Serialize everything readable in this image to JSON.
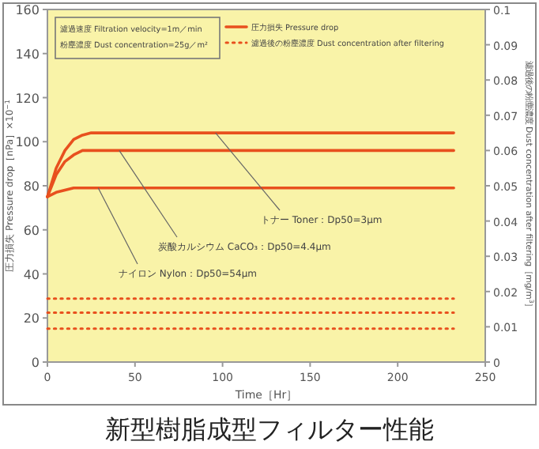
{
  "chart_data": {
    "type": "line",
    "title": "新型樹脂成型フィルター性能",
    "xlabel": "Time［Hr］",
    "ylabel": "圧力損失 Pressure drop［nPa］×10$^{−1}$",
    "y2label": "濾過後の粉塵濃度 Dust concentration after filtering［mg/m$^{3}$］",
    "xlim": [
      0,
      250
    ],
    "xticks": [
      0,
      50,
      100,
      150,
      200,
      250
    ],
    "ylim": [
      0,
      160
    ],
    "yticks": [
      0,
      20,
      40,
      60,
      80,
      100,
      120,
      140,
      160
    ],
    "y2lim": [
      0,
      0.1
    ],
    "y2ticks": [
      0,
      0.01,
      0.02,
      0.03,
      0.04,
      0.05,
      0.06,
      0.07,
      0.08,
      0.09,
      0.1
    ],
    "legend": "top",
    "grid": false,
    "series": [
      {
        "name": "圧力損失 Pressure drop",
        "color": "#e8501e",
        "line_style": "solid",
        "x": [
          0,
          5,
          10,
          15,
          20,
          25,
          30,
          232
        ],
        "values": [
          75,
          88,
          96,
          101,
          103,
          104,
          104,
          104
        ]
      },
      {
        "color": "#e8501e",
        "line_style": "solid",
        "x": [
          0,
          5,
          10,
          15,
          20,
          25,
          30,
          232
        ],
        "values": [
          75,
          85,
          91,
          94,
          96,
          96,
          96,
          96
        ]
      },
      {
        "color": "#e8501e",
        "line_style": "solid",
        "x": [
          0,
          5,
          10,
          15,
          20,
          25,
          232
        ],
        "values": [
          75,
          77,
          78,
          79,
          79,
          79,
          79
        ]
      },
      {
        "name": "濾過後の粉塵濃度 Dust concentration after filtering",
        "color": "#e8501e",
        "line_style": "dotted",
        "axis": "y2",
        "x": [
          0,
          232
        ],
        "values": [
          0.018,
          0.018
        ]
      },
      {
        "color": "#e8501e",
        "line_style": "dotted",
        "axis": "y2",
        "x": [
          0,
          232
        ],
        "values": [
          0.014,
          0.014
        ]
      },
      {
        "color": "#e8501e",
        "line_style": "dotted",
        "axis": "y2",
        "x": [
          0,
          232
        ],
        "values": [
          0.0095,
          0.0095
        ]
      }
    ],
    "annotations": [
      "濾過速度 Filtration velocity=1m／min",
      "粉塵濃度 Dust concentration=25g／m²",
      {
        "text": "トナー Toner：Dp50=3μm",
        "x": 96,
        "y": 104
      },
      {
        "text": "炭酸カルシウム CaCO₃：Dp50=4.4μm",
        "x": 41,
        "y": 96
      },
      {
        "text": "ナイロン Nylon：Dp50=54μm",
        "x": 29,
        "y": 79
      }
    ]
  }
}
